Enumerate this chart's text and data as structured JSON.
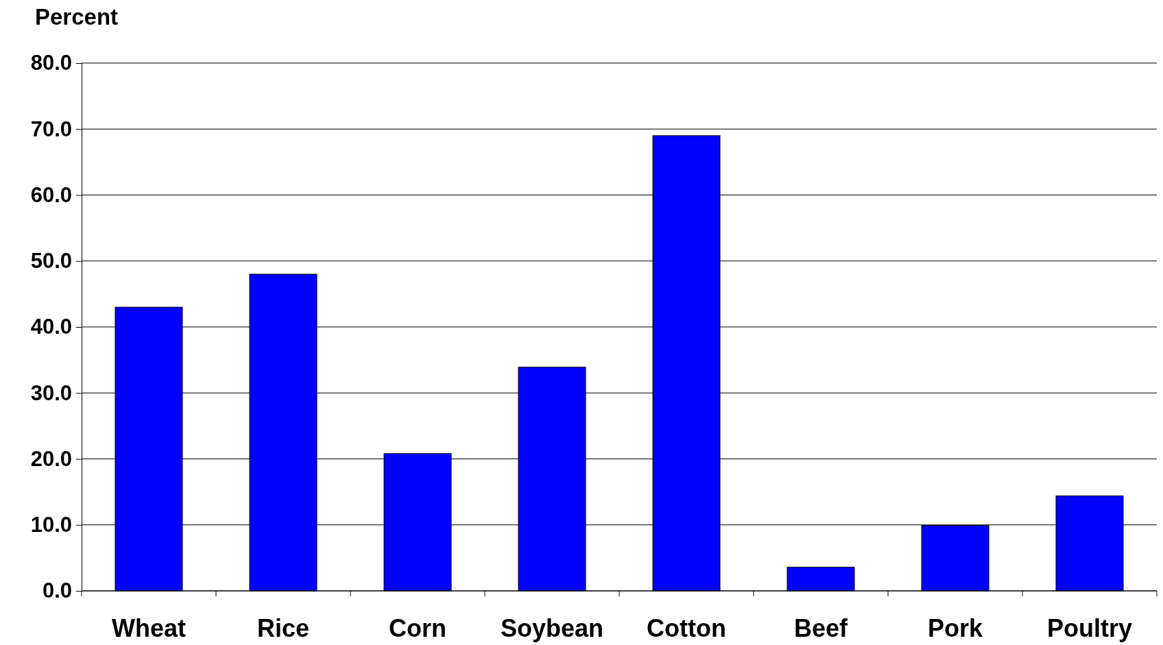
{
  "chart_data": {
    "type": "bar",
    "ylabel": "Percent",
    "categories": [
      "Wheat",
      "Rice",
      "Corn",
      "Soybean",
      "Cotton",
      "Beef",
      "Pork",
      "Poultry"
    ],
    "values": [
      43.0,
      48.0,
      20.8,
      33.9,
      69.0,
      3.6,
      9.9,
      14.4
    ],
    "color": "#0000ff",
    "ylim": [
      0,
      80
    ],
    "yticks": [
      {
        "value": 0,
        "label": "0.0"
      },
      {
        "value": 10,
        "label": "10.0"
      },
      {
        "value": 20,
        "label": "20.0"
      },
      {
        "value": 30,
        "label": "30.0"
      },
      {
        "value": 40,
        "label": "40.0"
      },
      {
        "value": 50,
        "label": "50.0"
      },
      {
        "value": 60,
        "label": "60.0"
      },
      {
        "value": 70,
        "label": "70.0"
      },
      {
        "value": 80,
        "label": "80.0"
      }
    ],
    "grid": "y"
  }
}
